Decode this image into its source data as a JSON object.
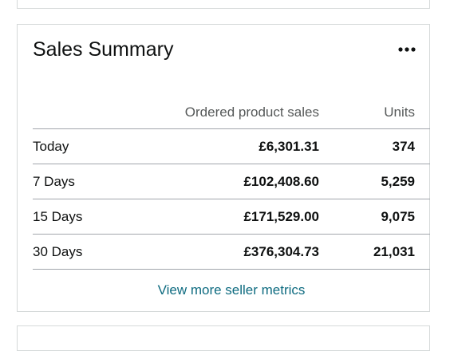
{
  "title": "Sales Summary",
  "table": {
    "columns": [
      "Ordered product sales",
      "Units"
    ],
    "rows": [
      [
        "Today",
        "£6,301.31",
        "374"
      ],
      [
        "7 Days",
        "£102,408.60",
        "5,259"
      ],
      [
        "15 Days",
        "£171,529.00",
        "9,075"
      ],
      [
        "30 Days",
        "£376,304.73",
        "21,031"
      ]
    ]
  },
  "link": "View more seller metrics"
}
